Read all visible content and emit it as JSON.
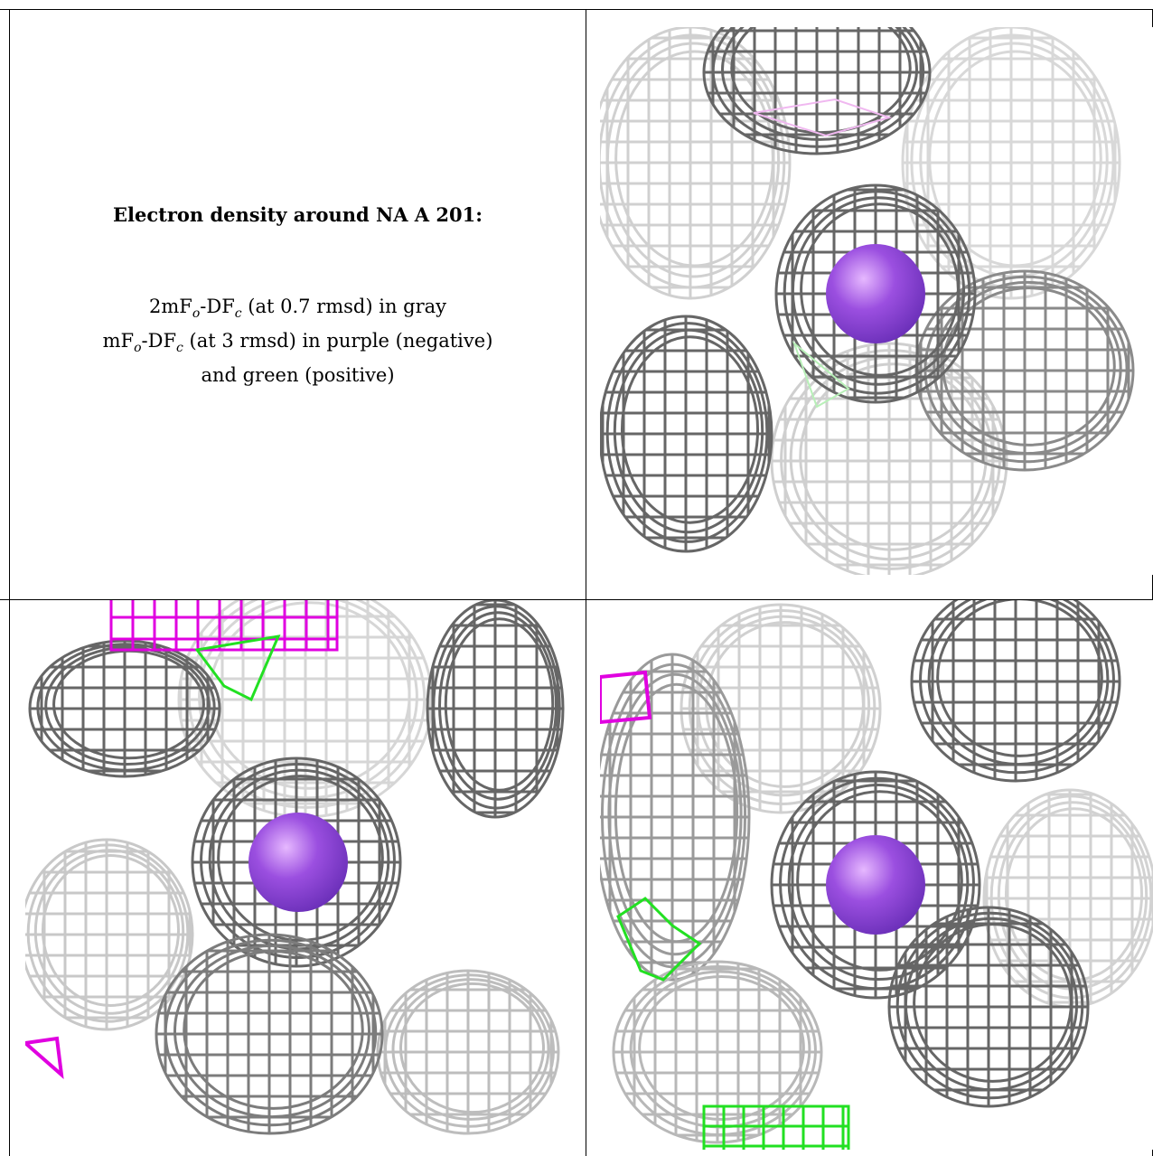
{
  "caption": {
    "title": "Electron density around NA A 201:",
    "line1_a": "2mF",
    "line1_sub1": "o",
    "line1_b": "-DF",
    "line1_sub2": "c",
    "line1_c": " (at 0.7 rmsd) in gray",
    "line2_a": "mF",
    "line2_sub1": "o",
    "line2_b": "-DF",
    "line2_sub2": "c",
    "line2_c": " (at 3 rmsd) in purple (negative)",
    "line3": "and green (positive)"
  },
  "colors": {
    "mesh_dark": "#666666",
    "mesh_light": "#c4c4c4",
    "negative": "#e000e0",
    "positive": "#22e022",
    "sodium": "#9b4fe0"
  },
  "panels": [
    {
      "name": "top-right-view",
      "ion": "NA A 201"
    },
    {
      "name": "bottom-left-view",
      "ion": "NA A 201"
    },
    {
      "name": "bottom-right-view",
      "ion": "NA A 201"
    }
  ]
}
